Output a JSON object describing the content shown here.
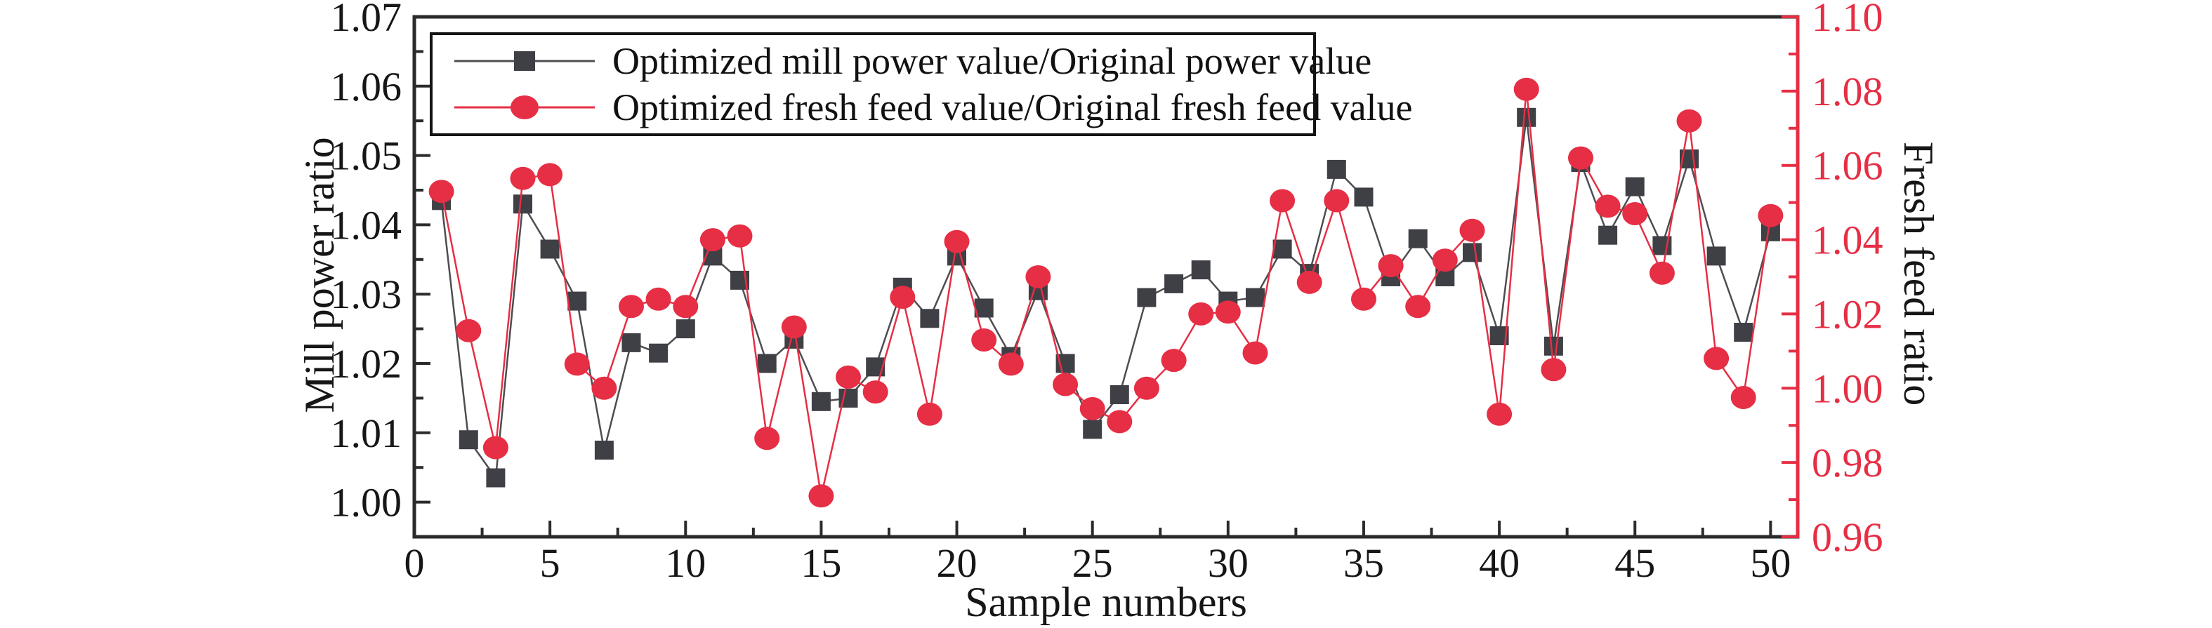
{
  "chart_data": {
    "type": "line",
    "title": "",
    "xlabel": "Sample numbers",
    "ylabel_left": "Mill power ratio",
    "ylabel_right": "Fresh feed ratio",
    "grid": false,
    "legend_position": "top-left-inside",
    "x": [
      1,
      2,
      3,
      4,
      5,
      6,
      7,
      8,
      9,
      10,
      11,
      12,
      13,
      14,
      15,
      16,
      17,
      18,
      19,
      20,
      21,
      22,
      23,
      24,
      25,
      26,
      27,
      28,
      29,
      30,
      31,
      32,
      33,
      34,
      35,
      36,
      37,
      38,
      39,
      40,
      41,
      42,
      43,
      44,
      45,
      46,
      47,
      48,
      49,
      50
    ],
    "x_axis": {
      "min": 0,
      "max": 51,
      "major_tick_step": 5,
      "minor_tick_step": 2.5,
      "tick_labels": [
        "0",
        "5",
        "10",
        "15",
        "20",
        "25",
        "30",
        "35",
        "40",
        "45",
        "50"
      ],
      "color": "#2b2b2b"
    },
    "left_axis": {
      "min": 0.995,
      "max": 1.07,
      "major_tick_step": 0.01,
      "minor_tick_step": 0.005,
      "tick_labels": [
        "1.00",
        "1.01",
        "1.02",
        "1.03",
        "1.04",
        "1.05",
        "1.06",
        "1.07"
      ],
      "color": "#161616"
    },
    "right_axis": {
      "min": 0.96,
      "max": 1.1,
      "major_tick_step": 0.02,
      "minor_tick_step": 0.01,
      "tick_labels": [
        "0.96",
        "0.98",
        "1.00",
        "1.02",
        "1.04",
        "1.06",
        "1.08",
        "1.10"
      ],
      "color": "#e62e44"
    },
    "series": [
      {
        "name": "Optimized mill power value/Original power value",
        "axis": "left",
        "marker": "square",
        "marker_color": "#3f3f46",
        "line_color": "#4d4d52",
        "values": [
          1.0435,
          1.009,
          1.0035,
          1.043,
          1.0365,
          1.029,
          1.0075,
          1.023,
          1.0215,
          1.025,
          1.0355,
          1.032,
          1.02,
          1.0235,
          1.0145,
          1.015,
          1.0195,
          1.031,
          1.0265,
          1.0355,
          1.028,
          1.021,
          1.0305,
          1.02,
          1.0105,
          1.0155,
          1.0295,
          1.0315,
          1.0335,
          1.029,
          1.0295,
          1.0365,
          1.033,
          1.048,
          1.044,
          1.0325,
          1.038,
          1.0325,
          1.036,
          1.024,
          1.0555,
          1.0225,
          1.049,
          1.0385,
          1.0455,
          1.037,
          1.0495,
          1.0355,
          1.0245,
          1.039
        ]
      },
      {
        "name": "Optimized fresh feed value/Original fresh feed value",
        "axis": "right",
        "marker": "circle",
        "marker_color": "#e62e44",
        "line_color": "#e62e44",
        "values": [
          1.053,
          1.0155,
          0.984,
          1.0565,
          1.0575,
          1.0065,
          1.0,
          1.022,
          1.024,
          1.022,
          1.04,
          1.041,
          0.9865,
          1.0165,
          0.971,
          1.003,
          0.999,
          1.0245,
          0.993,
          1.0395,
          1.013,
          1.0065,
          1.03,
          1.001,
          0.9945,
          0.991,
          1.0,
          1.0075,
          1.02,
          1.0205,
          1.0095,
          1.0505,
          1.0285,
          1.0505,
          1.024,
          1.033,
          1.022,
          1.0345,
          1.0425,
          0.993,
          1.0805,
          1.005,
          1.062,
          1.049,
          1.047,
          1.031,
          1.072,
          1.008,
          0.9975,
          1.0465
        ]
      }
    ]
  }
}
